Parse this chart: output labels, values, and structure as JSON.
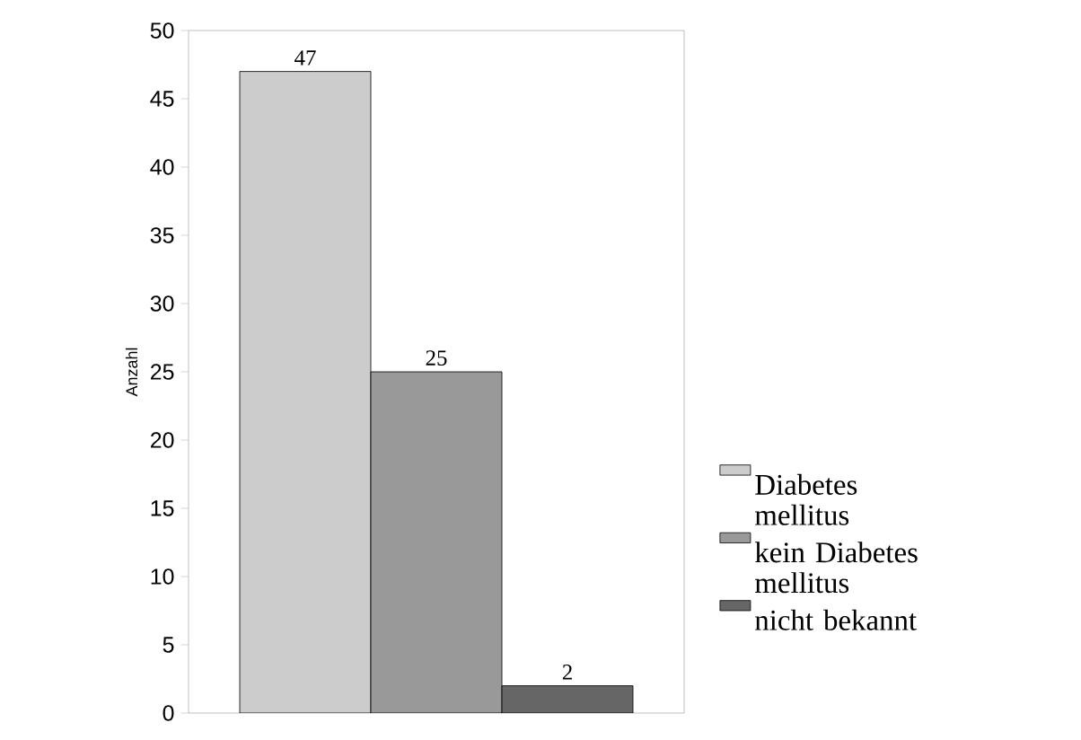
{
  "chart_data": {
    "type": "bar",
    "ylabel": "Anzahl",
    "categories": [
      null
    ],
    "series": [
      {
        "name": "Diabetes mellitus",
        "color": "#cccccc",
        "values": [
          47
        ]
      },
      {
        "name": "kein Diabetes mellitus",
        "color": "#999999",
        "values": [
          25
        ]
      },
      {
        "name": "nicht bekannt",
        "color": "#666666",
        "values": [
          2
        ]
      }
    ],
    "ylim": [
      0,
      50
    ],
    "yticks": [
      0,
      5,
      10,
      15,
      20,
      25,
      30,
      35,
      40,
      45,
      50
    ],
    "data_labels": true,
    "legend": "right",
    "grid": false
  }
}
